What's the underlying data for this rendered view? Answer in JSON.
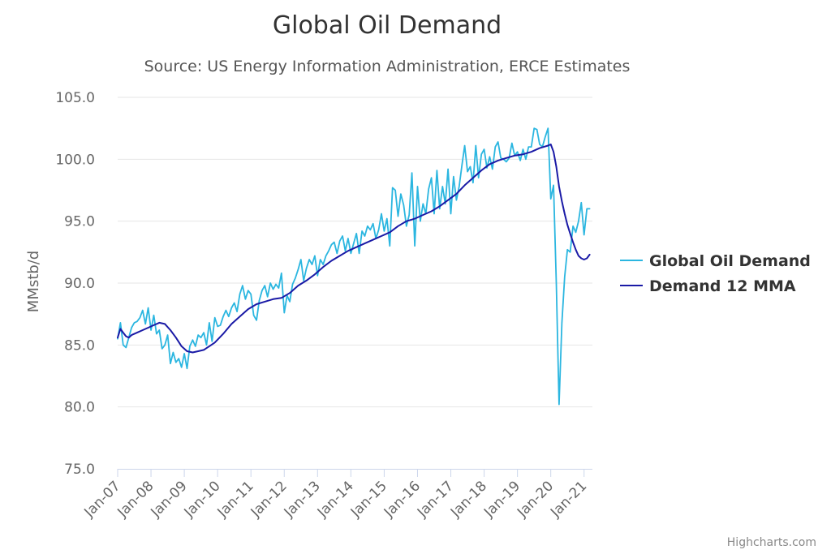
{
  "chart_data": {
    "type": "line",
    "title": "Global Oil Demand",
    "subtitle": "Source: US Energy Information Administration, ERCE Estimates",
    "xlabel": "",
    "ylabel": "MMstb/d",
    "ylim": [
      75,
      105
    ],
    "yticks": [
      "75.0",
      "80.0",
      "85.0",
      "90.0",
      "95.0",
      "100.0",
      "105.0"
    ],
    "xlim": [
      "2007-01",
      "2021-04"
    ],
    "xticks": [
      "Jan-07",
      "Jan-08",
      "Jan-09",
      "Jan-10",
      "Jan-11",
      "Jan-12",
      "Jan-13",
      "Jan-14",
      "Jan-15",
      "Jan-16",
      "Jan-17",
      "Jan-18",
      "Jan-19",
      "Jan-20",
      "Jan-21"
    ],
    "grid": true,
    "legend_position": "right",
    "series": [
      {
        "name": "Global Oil Demand",
        "color": "#2bb6e0",
        "points": [
          [
            "2007-01",
            85.5
          ],
          [
            "2007-02",
            86.8
          ],
          [
            "2007-03",
            85.0
          ],
          [
            "2007-04",
            84.8
          ],
          [
            "2007-05",
            85.6
          ],
          [
            "2007-06",
            86.4
          ],
          [
            "2007-07",
            86.8
          ],
          [
            "2007-08",
            86.9
          ],
          [
            "2007-09",
            87.2
          ],
          [
            "2007-10",
            87.8
          ],
          [
            "2007-11",
            86.7
          ],
          [
            "2007-12",
            88.0
          ],
          [
            "2008-01",
            86.2
          ],
          [
            "2008-02",
            87.4
          ],
          [
            "2008-03",
            85.9
          ],
          [
            "2008-04",
            86.2
          ],
          [
            "2008-05",
            84.7
          ],
          [
            "2008-06",
            85.0
          ],
          [
            "2008-07",
            85.8
          ],
          [
            "2008-08",
            83.5
          ],
          [
            "2008-09",
            84.4
          ],
          [
            "2008-10",
            83.6
          ],
          [
            "2008-11",
            83.9
          ],
          [
            "2008-12",
            83.2
          ],
          [
            "2009-01",
            84.3
          ],
          [
            "2009-02",
            83.1
          ],
          [
            "2009-03",
            84.9
          ],
          [
            "2009-04",
            85.4
          ],
          [
            "2009-05",
            84.9
          ],
          [
            "2009-06",
            85.8
          ],
          [
            "2009-07",
            85.6
          ],
          [
            "2009-08",
            86.0
          ],
          [
            "2009-09",
            85.0
          ],
          [
            "2009-10",
            86.8
          ],
          [
            "2009-11",
            85.3
          ],
          [
            "2009-12",
            87.2
          ],
          [
            "2010-01",
            86.5
          ],
          [
            "2010-02",
            86.6
          ],
          [
            "2010-03",
            87.3
          ],
          [
            "2010-04",
            87.8
          ],
          [
            "2010-05",
            87.3
          ],
          [
            "2010-06",
            88.0
          ],
          [
            "2010-07",
            88.4
          ],
          [
            "2010-08",
            87.7
          ],
          [
            "2010-09",
            89.1
          ],
          [
            "2010-10",
            89.8
          ],
          [
            "2010-11",
            88.7
          ],
          [
            "2010-12",
            89.4
          ],
          [
            "2011-01",
            89.1
          ],
          [
            "2011-02",
            87.4
          ],
          [
            "2011-03",
            87.0
          ],
          [
            "2011-04",
            88.6
          ],
          [
            "2011-05",
            89.4
          ],
          [
            "2011-06",
            89.8
          ],
          [
            "2011-07",
            88.9
          ],
          [
            "2011-08",
            90.0
          ],
          [
            "2011-09",
            89.5
          ],
          [
            "2011-10",
            89.9
          ],
          [
            "2011-11",
            89.6
          ],
          [
            "2011-12",
            90.8
          ],
          [
            "2012-01",
            87.6
          ],
          [
            "2012-02",
            89.0
          ],
          [
            "2012-03",
            88.5
          ],
          [
            "2012-04",
            89.9
          ],
          [
            "2012-05",
            90.4
          ],
          [
            "2012-06",
            91.1
          ],
          [
            "2012-07",
            91.9
          ],
          [
            "2012-08",
            90.2
          ],
          [
            "2012-09",
            91.2
          ],
          [
            "2012-10",
            91.9
          ],
          [
            "2012-11",
            91.5
          ],
          [
            "2012-12",
            92.2
          ],
          [
            "2013-01",
            90.6
          ],
          [
            "2013-02",
            91.9
          ],
          [
            "2013-03",
            91.5
          ],
          [
            "2013-04",
            92.2
          ],
          [
            "2013-05",
            92.6
          ],
          [
            "2013-06",
            93.1
          ],
          [
            "2013-07",
            93.3
          ],
          [
            "2013-08",
            92.4
          ],
          [
            "2013-09",
            93.4
          ],
          [
            "2013-10",
            93.8
          ],
          [
            "2013-11",
            92.6
          ],
          [
            "2013-12",
            93.6
          ],
          [
            "2014-01",
            92.4
          ],
          [
            "2014-02",
            93.2
          ],
          [
            "2014-03",
            94.0
          ],
          [
            "2014-04",
            92.4
          ],
          [
            "2014-05",
            94.2
          ],
          [
            "2014-06",
            93.8
          ],
          [
            "2014-07",
            94.6
          ],
          [
            "2014-08",
            94.3
          ],
          [
            "2014-09",
            94.8
          ],
          [
            "2014-10",
            93.6
          ],
          [
            "2014-11",
            94.3
          ],
          [
            "2014-12",
            95.6
          ],
          [
            "2015-01",
            94.2
          ],
          [
            "2015-02",
            95.2
          ],
          [
            "2015-03",
            93.0
          ],
          [
            "2015-04",
            97.7
          ],
          [
            "2015-05",
            97.5
          ],
          [
            "2015-06",
            95.4
          ],
          [
            "2015-07",
            97.2
          ],
          [
            "2015-08",
            96.3
          ],
          [
            "2015-09",
            94.6
          ],
          [
            "2015-10",
            95.5
          ],
          [
            "2015-11",
            98.9
          ],
          [
            "2015-12",
            93.0
          ],
          [
            "2016-01",
            97.8
          ],
          [
            "2016-02",
            95.0
          ],
          [
            "2016-03",
            96.4
          ],
          [
            "2016-04",
            95.6
          ],
          [
            "2016-05",
            97.6
          ],
          [
            "2016-06",
            98.5
          ],
          [
            "2016-07",
            95.6
          ],
          [
            "2016-08",
            99.1
          ],
          [
            "2016-09",
            96.0
          ],
          [
            "2016-10",
            97.8
          ],
          [
            "2016-11",
            96.4
          ],
          [
            "2016-12",
            99.2
          ],
          [
            "2017-01",
            95.6
          ],
          [
            "2017-02",
            98.6
          ],
          [
            "2017-03",
            96.7
          ],
          [
            "2017-04",
            97.8
          ],
          [
            "2017-05",
            99.5
          ],
          [
            "2017-06",
            101.1
          ],
          [
            "2017-07",
            99.0
          ],
          [
            "2017-08",
            99.4
          ],
          [
            "2017-09",
            98.1
          ],
          [
            "2017-10",
            101.1
          ],
          [
            "2017-11",
            98.5
          ],
          [
            "2017-12",
            100.4
          ],
          [
            "2018-01",
            100.8
          ],
          [
            "2018-02",
            99.3
          ],
          [
            "2018-03",
            100.2
          ],
          [
            "2018-04",
            99.2
          ],
          [
            "2018-05",
            101.0
          ],
          [
            "2018-06",
            101.4
          ],
          [
            "2018-07",
            100.1
          ],
          [
            "2018-08",
            100.0
          ],
          [
            "2018-09",
            99.8
          ],
          [
            "2018-10",
            100.1
          ],
          [
            "2018-11",
            101.3
          ],
          [
            "2018-12",
            100.3
          ],
          [
            "2019-01",
            100.6
          ],
          [
            "2019-02",
            99.9
          ],
          [
            "2019-03",
            100.8
          ],
          [
            "2019-04",
            100.0
          ],
          [
            "2019-05",
            101.0
          ],
          [
            "2019-06",
            101.0
          ],
          [
            "2019-07",
            102.5
          ],
          [
            "2019-08",
            102.4
          ],
          [
            "2019-09",
            101.2
          ],
          [
            "2019-10",
            101.0
          ],
          [
            "2019-11",
            101.8
          ],
          [
            "2019-12",
            102.5
          ],
          [
            "2020-01",
            96.8
          ],
          [
            "2020-02",
            97.9
          ],
          [
            "2020-03",
            90.0
          ],
          [
            "2020-04",
            80.2
          ],
          [
            "2020-05",
            86.8
          ],
          [
            "2020-06",
            90.5
          ],
          [
            "2020-07",
            92.7
          ],
          [
            "2020-08",
            92.5
          ],
          [
            "2020-09",
            94.6
          ],
          [
            "2020-10",
            94.1
          ],
          [
            "2020-11",
            95.0
          ],
          [
            "2020-12",
            96.5
          ],
          [
            "2021-01",
            93.9
          ],
          [
            "2021-02",
            96.0
          ],
          [
            "2021-03",
            96.0
          ]
        ]
      },
      {
        "name": "Demand 12 MMA",
        "color": "#1a1aa6",
        "points": [
          [
            "2007-01",
            85.6
          ],
          [
            "2007-02",
            86.3
          ],
          [
            "2007-03",
            86.0
          ],
          [
            "2007-04",
            85.7
          ],
          [
            "2007-05",
            85.6
          ],
          [
            "2007-06",
            85.8
          ],
          [
            "2007-08",
            86.0
          ],
          [
            "2007-10",
            86.2
          ],
          [
            "2007-12",
            86.4
          ],
          [
            "2008-02",
            86.6
          ],
          [
            "2008-04",
            86.8
          ],
          [
            "2008-06",
            86.7
          ],
          [
            "2008-08",
            86.2
          ],
          [
            "2008-10",
            85.6
          ],
          [
            "2008-12",
            84.9
          ],
          [
            "2009-02",
            84.5
          ],
          [
            "2009-04",
            84.4
          ],
          [
            "2009-06",
            84.5
          ],
          [
            "2009-08",
            84.6
          ],
          [
            "2009-10",
            84.9
          ],
          [
            "2009-12",
            85.2
          ],
          [
            "2010-03",
            85.9
          ],
          [
            "2010-06",
            86.7
          ],
          [
            "2010-09",
            87.3
          ],
          [
            "2010-12",
            87.9
          ],
          [
            "2011-03",
            88.3
          ],
          [
            "2011-06",
            88.5
          ],
          [
            "2011-09",
            88.7
          ],
          [
            "2011-12",
            88.8
          ],
          [
            "2012-03",
            89.2
          ],
          [
            "2012-06",
            89.8
          ],
          [
            "2012-09",
            90.2
          ],
          [
            "2012-12",
            90.7
          ],
          [
            "2013-03",
            91.3
          ],
          [
            "2013-06",
            91.8
          ],
          [
            "2013-09",
            92.2
          ],
          [
            "2013-12",
            92.6
          ],
          [
            "2014-03",
            92.9
          ],
          [
            "2014-06",
            93.2
          ],
          [
            "2014-09",
            93.5
          ],
          [
            "2014-12",
            93.8
          ],
          [
            "2015-03",
            94.1
          ],
          [
            "2015-06",
            94.6
          ],
          [
            "2015-09",
            95.0
          ],
          [
            "2015-12",
            95.2
          ],
          [
            "2016-03",
            95.5
          ],
          [
            "2016-06",
            95.8
          ],
          [
            "2016-09",
            96.2
          ],
          [
            "2016-12",
            96.7
          ],
          [
            "2017-03",
            97.2
          ],
          [
            "2017-06",
            97.9
          ],
          [
            "2017-09",
            98.5
          ],
          [
            "2017-12",
            99.1
          ],
          [
            "2018-03",
            99.6
          ],
          [
            "2018-06",
            99.9
          ],
          [
            "2018-09",
            100.1
          ],
          [
            "2018-12",
            100.3
          ],
          [
            "2019-03",
            100.4
          ],
          [
            "2019-06",
            100.6
          ],
          [
            "2019-09",
            100.9
          ],
          [
            "2019-12",
            101.1
          ],
          [
            "2020-01",
            101.2
          ],
          [
            "2020-02",
            100.6
          ],
          [
            "2020-03",
            99.4
          ],
          [
            "2020-04",
            97.8
          ],
          [
            "2020-05",
            96.6
          ],
          [
            "2020-06",
            95.6
          ],
          [
            "2020-07",
            94.7
          ],
          [
            "2020-08",
            94.0
          ],
          [
            "2020-09",
            93.3
          ],
          [
            "2020-10",
            92.7
          ],
          [
            "2020-11",
            92.2
          ],
          [
            "2020-12",
            92.0
          ],
          [
            "2021-01",
            91.9
          ],
          [
            "2021-02",
            92.0
          ],
          [
            "2021-03",
            92.3
          ]
        ]
      }
    ]
  },
  "credit": "Highcharts.com"
}
